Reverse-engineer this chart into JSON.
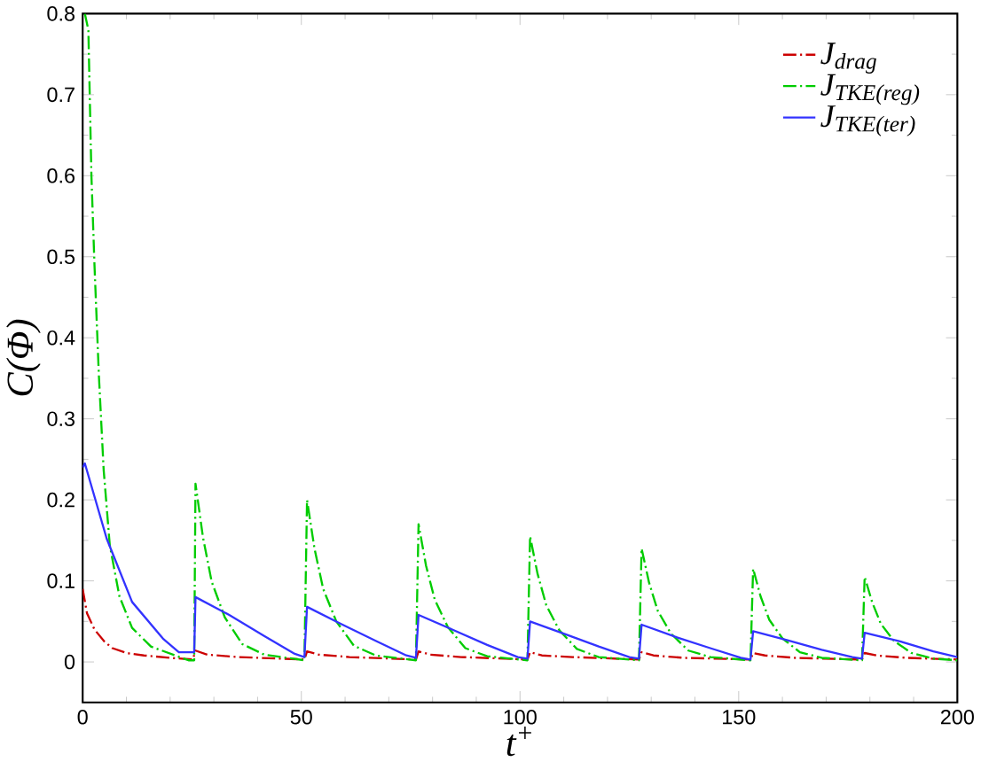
{
  "chart_data": {
    "type": "line",
    "xlabel": "t$^{+}$",
    "ylabel": "C(Φ)",
    "xlim": [
      0,
      200
    ],
    "xticks": [
      0,
      50,
      100,
      150,
      200
    ],
    "ylim": [
      -0.05,
      0.8
    ],
    "yticks": [
      0,
      0.1,
      0.2,
      0.3,
      0.4,
      0.5,
      0.6,
      0.7,
      0.8
    ],
    "legend": "top right",
    "grid": false,
    "marker": "none",
    "series": [
      {
        "name": "J$_{drag}$",
        "color": "#cc0000",
        "line_style": "dashed",
        "x": [
          0,
          1,
          2.7,
          5,
          6.8,
          10,
          14,
          20,
          25.2,
          25.8,
          28.5,
          35.5,
          50.7,
          51.3,
          54,
          61,
          76.2,
          76.8,
          79.5,
          86.5,
          101.7,
          102.3,
          105,
          112,
          127.2,
          127.8,
          130.5,
          137.5,
          152.7,
          153.3,
          156,
          163,
          178.2,
          178.8,
          181.5,
          188.5,
          200
        ],
        "values": [
          0.09,
          0.06,
          0.04,
          0.025,
          0.017,
          0.011,
          0.008,
          0.005,
          0.003,
          0.014,
          0.009,
          0.006,
          0.003,
          0.013,
          0.009,
          0.006,
          0.003,
          0.013,
          0.009,
          0.006,
          0.003,
          0.012,
          0.008,
          0.006,
          0.003,
          0.012,
          0.008,
          0.005,
          0.003,
          0.011,
          0.008,
          0.005,
          0.003,
          0.011,
          0.008,
          0.005,
          0.003
        ]
      },
      {
        "name": "J$_{TKE(reg)}$",
        "color": "#00cc00",
        "line_style": "dashed",
        "x": [
          0.5,
          1.3,
          2,
          2.7,
          3.7,
          4.8,
          6.2,
          8.4,
          11.3,
          15.6,
          24.2,
          25.5,
          25.8,
          27.5,
          29.5,
          32.5,
          36.5,
          41.5,
          50.7,
          51.3,
          53,
          55,
          58,
          62,
          67,
          76.2,
          76.8,
          78.5,
          80.5,
          83.5,
          87.5,
          92.5,
          101.7,
          102.3,
          104,
          106,
          109,
          113,
          118,
          127.2,
          127.8,
          129.5,
          131.5,
          134.5,
          138.5,
          143.5,
          152.7,
          153.3,
          155,
          157,
          160,
          164,
          169,
          178.2,
          178.8,
          180.5,
          182.5,
          185.5,
          189.5,
          194.5,
          200
        ],
        "values": [
          0.8,
          0.78,
          0.6,
          0.49,
          0.354,
          0.237,
          0.144,
          0.081,
          0.042,
          0.019,
          0.002,
          0.002,
          0.22,
          0.154,
          0.099,
          0.055,
          0.022,
          0.009,
          0.002,
          0.2,
          0.14,
          0.09,
          0.05,
          0.02,
          0.008,
          0.002,
          0.17,
          0.119,
          0.077,
          0.043,
          0.017,
          0.007,
          0.002,
          0.155,
          0.109,
          0.07,
          0.039,
          0.016,
          0.006,
          0.002,
          0.14,
          0.098,
          0.063,
          0.035,
          0.014,
          0.006,
          0.002,
          0.115,
          0.081,
          0.052,
          0.029,
          0.012,
          0.005,
          0.002,
          0.105,
          0.074,
          0.047,
          0.026,
          0.011,
          0.004,
          0.002
        ]
      },
      {
        "name": "J$_{TKE(ter)}$",
        "color": "#3333ff",
        "line_style": "solid",
        "x": [
          0,
          0.5,
          5.5,
          11.3,
          18.5,
          22,
          25.5,
          25.8,
          33.5,
          41.5,
          48.5,
          50.7,
          51.3,
          59,
          67,
          74,
          76.2,
          76.8,
          84.5,
          92.5,
          99.5,
          101.7,
          102.3,
          110,
          118,
          125,
          127.2,
          127.8,
          135.5,
          143.5,
          150.5,
          152.7,
          153.3,
          161,
          169,
          176,
          178.2,
          178.8,
          186.5,
          194.5,
          200
        ],
        "values": [
          0.24,
          0.245,
          0.152,
          0.074,
          0.028,
          0.012,
          0.012,
          0.08,
          0.058,
          0.032,
          0.01,
          0.006,
          0.068,
          0.047,
          0.026,
          0.008,
          0.005,
          0.058,
          0.04,
          0.021,
          0.006,
          0.004,
          0.05,
          0.035,
          0.019,
          0.006,
          0.004,
          0.046,
          0.031,
          0.017,
          0.005,
          0.003,
          0.038,
          0.027,
          0.015,
          0.006,
          0.004,
          0.036,
          0.026,
          0.013,
          0.006
        ]
      }
    ]
  }
}
